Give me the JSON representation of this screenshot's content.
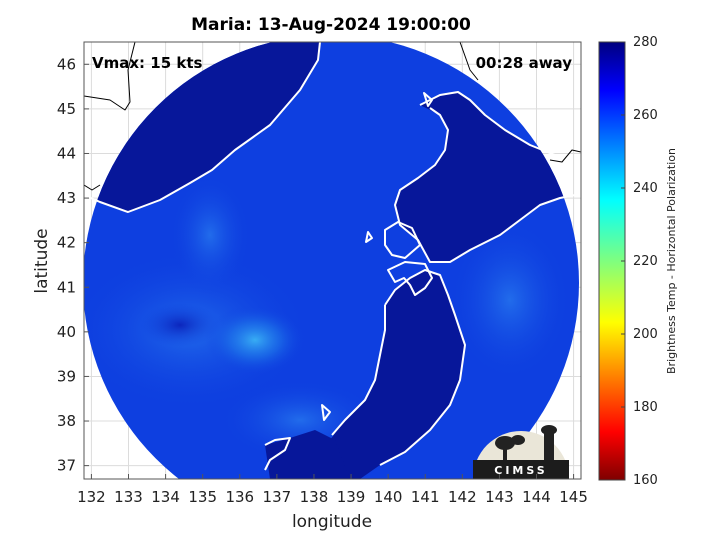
{
  "title": "Maria: 13-Aug-2024 19:00:00",
  "vmax_label": "Vmax: 15 kts",
  "away_label": "00:28 away",
  "logo_text": "CIMSS",
  "xlabel": "longitude",
  "ylabel": "latitude",
  "colorbar_label": "Brightness Temp - Horizontal Polarization",
  "chart_data": {
    "type": "heatmap",
    "title": "Maria: 13-Aug-2024 19:00:00",
    "xlabel": "longitude",
    "ylabel": "latitude",
    "xlim": [
      131.8,
      145.2
    ],
    "ylim": [
      36.7,
      46.5
    ],
    "x_ticks": [
      132,
      133,
      134,
      135,
      136,
      137,
      138,
      139,
      140,
      141,
      142,
      143,
      144,
      145
    ],
    "y_ticks": [
      37,
      38,
      39,
      40,
      41,
      42,
      43,
      44,
      45,
      46
    ],
    "grid": true,
    "colorbar": {
      "label": "Brightness Temp - Horizontal Polarization",
      "range": [
        160,
        280
      ],
      "ticks": [
        160,
        180,
        200,
        220,
        240,
        260,
        280
      ],
      "colormap": "jet"
    },
    "swath_center": [
      138.5,
      41.2
    ],
    "annotations": [
      "Vmax: 15 kts",
      "00:28 away"
    ]
  },
  "colors": {
    "ocean_base": "#0e3fe0",
    "land_dark": "#07179a",
    "cool_spot": "#1a9cf0",
    "coastline": "#ffffff"
  }
}
